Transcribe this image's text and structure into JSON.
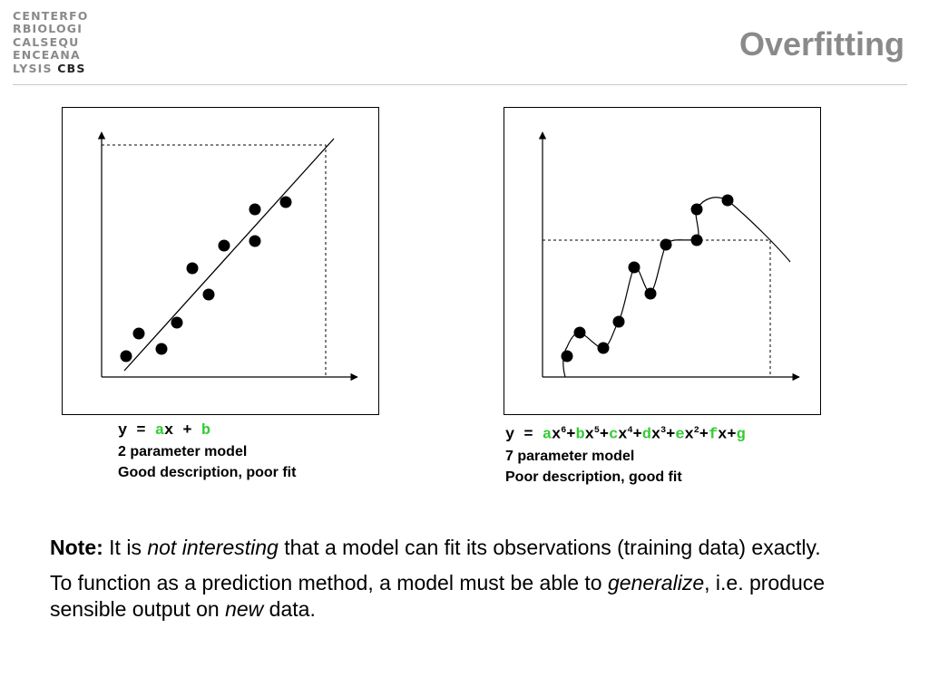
{
  "header": {
    "logo_lines": [
      "CENTERFO",
      "RBIOLOGI",
      "CALSEQU",
      "ENCEANA"
    ],
    "logo_last_prefix": "LYSIS",
    "logo_last_bold": "CBS",
    "title": "Overfitting"
  },
  "left": {
    "formula": {
      "y": "y",
      "eq": " = ",
      "a": "a",
      "x1": "x",
      "plus": " + ",
      "b": "b"
    },
    "line1": "2 parameter model",
    "line2": "Good description, poor fit"
  },
  "right": {
    "formula": {
      "prefix": "y = ",
      "terms": [
        {
          "coef": "a",
          "var": "x",
          "pow": "6",
          "sep": "+"
        },
        {
          "coef": "b",
          "var": "x",
          "pow": "5",
          "sep": "+"
        },
        {
          "coef": "c",
          "var": "x",
          "pow": "4",
          "sep": "+"
        },
        {
          "coef": "d",
          "var": "x",
          "pow": "3",
          "sep": "+"
        },
        {
          "coef": "e",
          "var": "x",
          "pow": "2",
          "sep": "+"
        },
        {
          "coef": "f",
          "var": "x",
          "pow": "",
          "sep": "+"
        },
        {
          "coef": "g",
          "var": "",
          "pow": "",
          "sep": ""
        }
      ]
    },
    "line1": "7 parameter model",
    "line2": "Poor description, good fit"
  },
  "note": {
    "p1_bold": "Note:",
    "p1_a": " It is ",
    "p1_italic": "not interesting",
    "p1_b": " that a model can fit its observations (training data) exactly.",
    "p2_a": "To function as a prediction method, a model must be able to ",
    "p2_italic": "generalize",
    "p2_b": ", i.e. produce sensible output on ",
    "p2_italic2": "new",
    "p2_c": " data."
  },
  "colors": {
    "accent_green": "#33cc33",
    "title_gray": "#8a8a8a"
  }
}
